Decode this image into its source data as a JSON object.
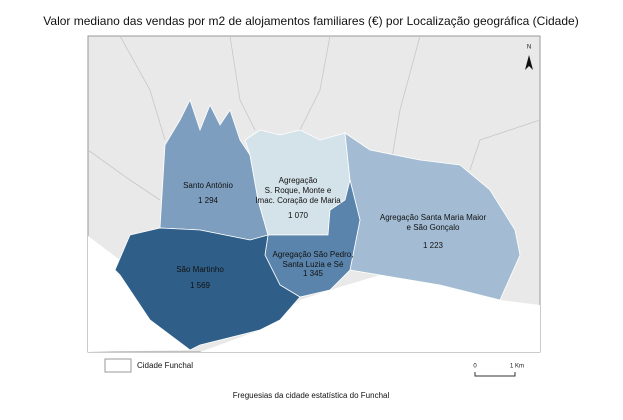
{
  "title": "Valor mediano das vendas por m2 de alojamentos familiares (€) por Localização geográfica (Cidade)",
  "regions": [
    {
      "name": [
        "Santo António"
      ],
      "value": "1 294",
      "color": "#7d9ebf"
    },
    {
      "name": [
        "Agregação",
        "S. Roque, Monte e",
        "Imac. Coração de Maria"
      ],
      "value": "1 070",
      "color": "#d4e2ea"
    },
    {
      "name": [
        "Agregação Santa Maria Maior",
        "e São Gonçalo"
      ],
      "value": "1 223",
      "color": "#a3bcd3"
    },
    {
      "name": [
        "Agregação São Pedro,",
        "Santa Luzia e Sé"
      ],
      "value": "1 345",
      "color": "#5a84ab"
    },
    {
      "name": [
        "São Martinho"
      ],
      "value": "1 569",
      "color": "#2f5f89"
    }
  ],
  "legend": "Cidade Funchal",
  "north": "N",
  "scale": [
    "0",
    "1 Km"
  ],
  "caption": "Freguesias da cidade estatística do Funchal"
}
